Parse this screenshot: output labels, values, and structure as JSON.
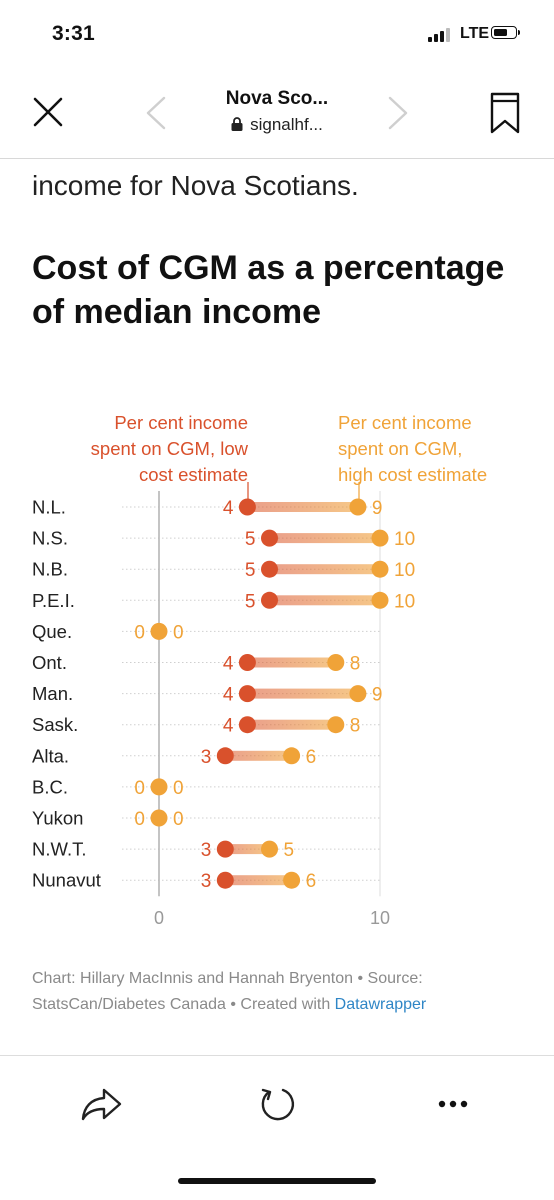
{
  "status_bar": {
    "time": "3:31",
    "network": "LTE"
  },
  "browser": {
    "title": "Nova Sco...",
    "url": "signalhf..."
  },
  "article": {
    "intro": "income for Nova Scotians.",
    "chart_title": "Cost of CGM as a percentage of median income",
    "credit_prefix": "Chart: Hillary MacInnis and Hannah Bryenton • Source: StatsCan/Diabetes Canada • Created with ",
    "credit_link": "Datawrapper"
  },
  "colors": {
    "low": "#d9512c",
    "high": "#f0a338",
    "axis_label": "#999999"
  },
  "chart_data": {
    "type": "dot",
    "categories": [
      "N.L.",
      "N.S.",
      "N.B.",
      "P.E.I.",
      "Que.",
      "Ont.",
      "Man.",
      "Sask.",
      "Alta.",
      "B.C.",
      "Yukon",
      "N.W.T.",
      "Nunavut"
    ],
    "series": [
      {
        "name": "Per cent income spent on CGM, low cost estimate",
        "values": [
          4,
          5,
          5,
          5,
          0,
          4,
          4,
          4,
          3,
          0,
          0,
          3,
          3
        ]
      },
      {
        "name": "Per cent income spent on CGM, high cost estimate",
        "values": [
          9,
          10,
          10,
          10,
          0,
          8,
          9,
          8,
          6,
          0,
          0,
          5,
          6
        ]
      }
    ],
    "legend": {
      "low": [
        "Per cent income",
        "spent on CGM, low",
        "cost estimate"
      ],
      "high": [
        "Per cent income",
        "spent on CGM,",
        "high cost estimate"
      ]
    },
    "x_ticks": [
      0,
      10
    ],
    "xlim": [
      0,
      10
    ],
    "grid": true
  }
}
